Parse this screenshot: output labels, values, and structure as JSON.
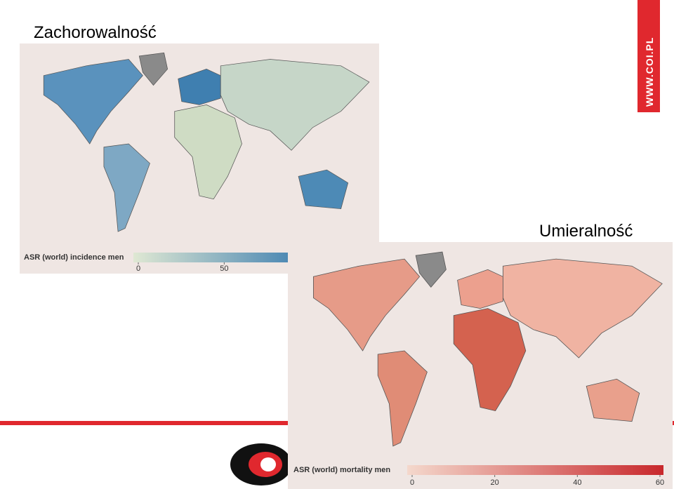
{
  "slide": {
    "banner": "WWW.COI.PL",
    "maps": [
      {
        "title": "Zachorowalność",
        "legend": {
          "label": "ASR (world) incidence men",
          "range": [
            0,
            85
          ],
          "ticks": [
            0,
            50
          ]
        }
      },
      {
        "title": "Umieralność",
        "legend": {
          "label": "ASR (world) mortality men",
          "range": [
            0,
            60
          ],
          "ticks": [
            0,
            20,
            40,
            60
          ]
        }
      }
    ]
  }
}
